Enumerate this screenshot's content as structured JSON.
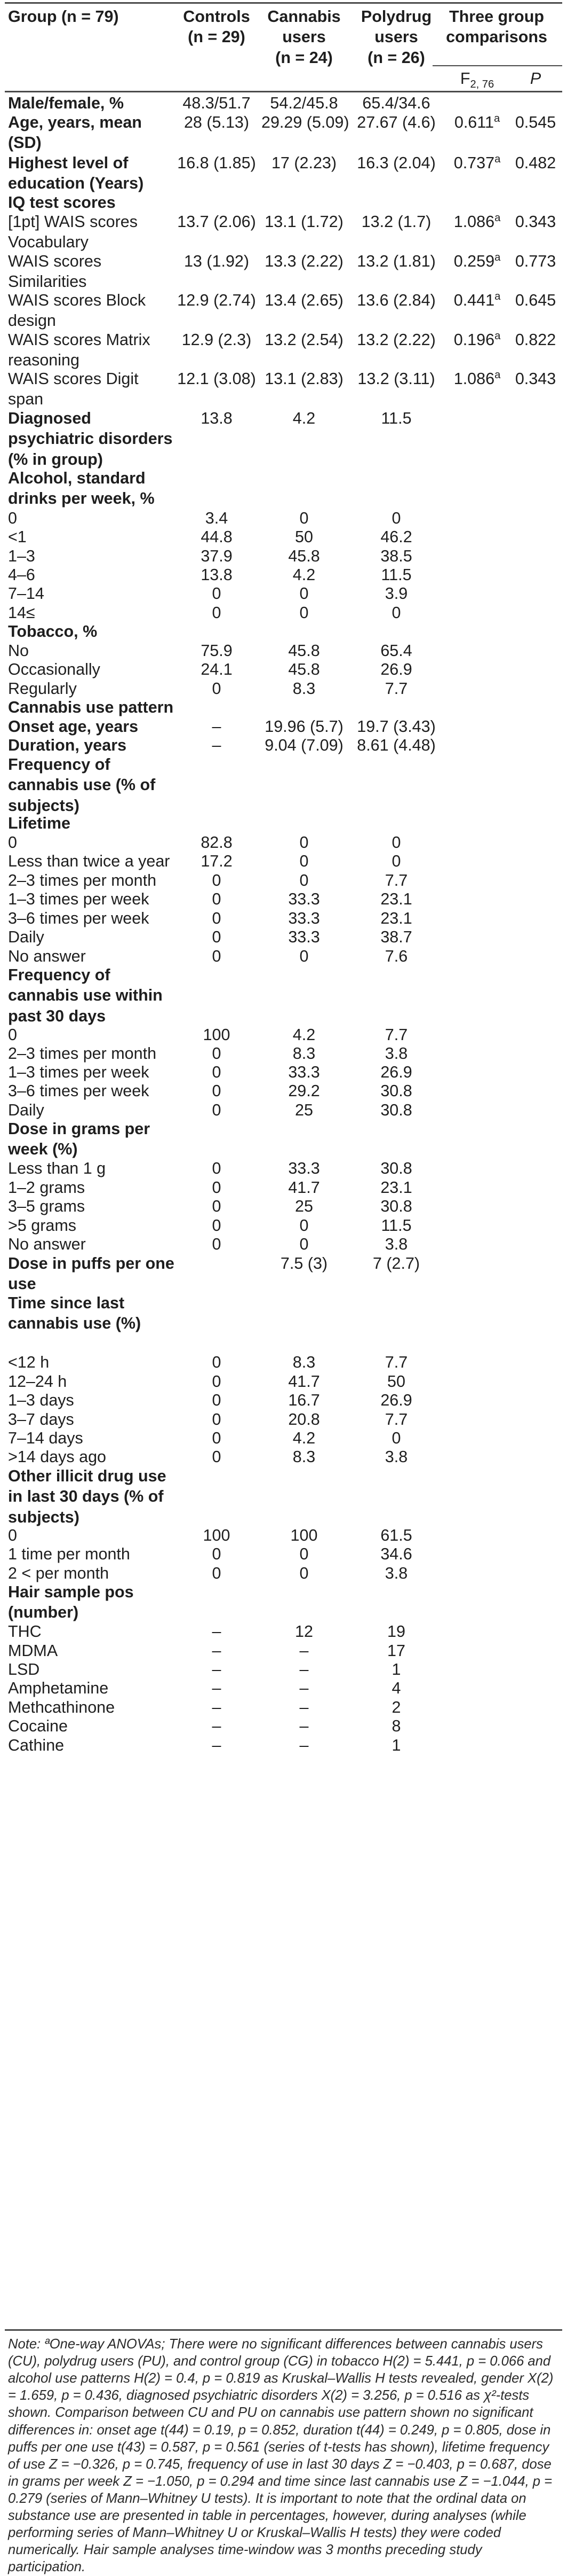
{
  "table": {
    "header": {
      "group": "Group (n = 79)",
      "controls": "Controls",
      "controls_n": "(n = 29)",
      "cannabis": "Cannabis",
      "cannabis_2": "users",
      "cannabis_n": "(n = 24)",
      "polydrug": "Polydrug",
      "polydrug_2": "users",
      "polydrug_n": "(n = 26)",
      "three": "Three group",
      "comparisons": "comparisons",
      "f_label": "F",
      "f_sub": "2, 76",
      "p_label": "P"
    },
    "rows": [
      {
        "label": "Male/female, %",
        "bold": true,
        "cu": "48.3/51.7",
        "cb": "54.2/45.8",
        "pu": "65.4/34.6",
        "f": "",
        "fsup": "",
        "p": ""
      },
      {
        "label": "Age, years, mean (SD)",
        "bold": true,
        "cu": "28 (5.13)",
        "cb": "29.29 (5.09)",
        "pu": "27.67 (4.6)",
        "f": "0.611",
        "fsup": "a",
        "p": "0.545"
      },
      {
        "label": "Highest level of education (Years)",
        "bold": true,
        "cu": "16.8 (1.85)",
        "cb": "17 (2.23)",
        "pu": "16.3 (2.04)",
        "f": "0.737",
        "fsup": "a",
        "p": "0.482"
      },
      {
        "label": "IQ test scores",
        "bold": true,
        "cu": "",
        "cb": "",
        "pu": "",
        "f": "",
        "fsup": "",
        "p": ""
      },
      {
        "label": "[1pt] WAIS scores Vocabulary",
        "bold": false,
        "cu": "13.7 (2.06)",
        "cb": "13.1 (1.72)",
        "pu": "13.2 (1.7)",
        "f": "1.086",
        "fsup": "a",
        "p": "0.343"
      },
      {
        "label": "WAIS scores Similarities",
        "bold": false,
        "cu": "13 (1.92)",
        "cb": "13.3 (2.22)",
        "pu": "13.2 (1.81)",
        "f": "0.259",
        "fsup": "a",
        "p": "0.773"
      },
      {
        "label": "WAIS scores Block design",
        "bold": false,
        "cu": "12.9 (2.74)",
        "cb": "13.4 (2.65)",
        "pu": "13.6 (2.84)",
        "f": "0.441",
        "fsup": "a",
        "p": "0.645"
      },
      {
        "label": "WAIS scores Matrix reasoning",
        "bold": false,
        "cu": "12.9 (2.3)",
        "cb": "13.2 (2.54)",
        "pu": "13.2 (2.22)",
        "f": "0.196",
        "fsup": "a",
        "p": "0.822"
      },
      {
        "label": "WAIS scores Digit span",
        "bold": false,
        "cu": "12.1 (3.08)",
        "cb": "13.1 (2.83)",
        "pu": "13.2 (3.11)",
        "f": "1.086",
        "fsup": "a",
        "p": "0.343"
      },
      {
        "label": "Diagnosed psychiatric disorders (% in group)",
        "bold": true,
        "cu": "13.8",
        "cb": "4.2",
        "pu": "11.5",
        "f": "",
        "fsup": "",
        "p": ""
      },
      {
        "label": "Alcohol, standard drinks per week, %",
        "bold": true,
        "cu": "",
        "cb": "",
        "pu": "",
        "f": "",
        "fsup": "",
        "p": ""
      },
      {
        "label": "0",
        "bold": false,
        "cu": "3.4",
        "cb": "0",
        "pu": "0",
        "f": "",
        "fsup": "",
        "p": ""
      },
      {
        "label": "<1",
        "bold": false,
        "cu": "44.8",
        "cb": "50",
        "pu": "46.2",
        "f": "",
        "fsup": "",
        "p": ""
      },
      {
        "label": "1–3",
        "bold": false,
        "cu": "37.9",
        "cb": "45.8",
        "pu": "38.5",
        "f": "",
        "fsup": "",
        "p": ""
      },
      {
        "label": "4–6",
        "bold": false,
        "cu": "13.8",
        "cb": "4.2",
        "pu": "11.5",
        "f": "",
        "fsup": "",
        "p": ""
      },
      {
        "label": "7–14",
        "bold": false,
        "cu": "0",
        "cb": "0",
        "pu": "3.9",
        "f": "",
        "fsup": "",
        "p": ""
      },
      {
        "label": "14≤",
        "bold": false,
        "cu": "0",
        "cb": "0",
        "pu": "0",
        "f": "",
        "fsup": "",
        "p": ""
      },
      {
        "label": "Tobacco, %",
        "bold": true,
        "cu": "",
        "cb": "",
        "pu": "",
        "f": "",
        "fsup": "",
        "p": ""
      },
      {
        "label": "No",
        "bold": false,
        "cu": "75.9",
        "cb": "45.8",
        "pu": "65.4",
        "f": "",
        "fsup": "",
        "p": ""
      },
      {
        "label": "Occasionally",
        "bold": false,
        "cu": "24.1",
        "cb": "45.8",
        "pu": "26.9",
        "f": "",
        "fsup": "",
        "p": ""
      },
      {
        "label": "Regularly",
        "bold": false,
        "cu": "0",
        "cb": "8.3",
        "pu": "7.7",
        "f": "",
        "fsup": "",
        "p": ""
      },
      {
        "label": "Cannabis use pattern",
        "bold": true,
        "cu": "",
        "cb": "",
        "pu": "",
        "f": "",
        "fsup": "",
        "p": ""
      },
      {
        "label": "Onset age, years",
        "bold": true,
        "cu": "–",
        "cb": "19.96 (5.7)",
        "pu": "19.7 (3.43)",
        "f": "",
        "fsup": "",
        "p": ""
      },
      {
        "label": "Duration, years",
        "bold": true,
        "cu": "–",
        "cb": "9.04 (7.09)",
        "pu": "8.61 (4.48)",
        "f": "",
        "fsup": "",
        "p": ""
      },
      {
        "label": "Frequency of cannabis use (% of subjects)",
        "bold": true,
        "cu": "",
        "cb": "",
        "pu": "",
        "f": "",
        "fsup": "",
        "p": ""
      },
      {
        "label": "Lifetime",
        "bold": true,
        "cu": "",
        "cb": "",
        "pu": "",
        "f": "",
        "fsup": "",
        "p": ""
      },
      {
        "label": "0",
        "bold": false,
        "cu": "82.8",
        "cb": "0",
        "pu": "0",
        "f": "",
        "fsup": "",
        "p": ""
      },
      {
        "label": "Less than twice a year",
        "bold": false,
        "cu": "17.2",
        "cb": "0",
        "pu": "0",
        "f": "",
        "fsup": "",
        "p": ""
      },
      {
        "label": "2–3 times per month",
        "bold": false,
        "cu": "0",
        "cb": "0",
        "pu": "7.7",
        "f": "",
        "fsup": "",
        "p": ""
      },
      {
        "label": "1–3 times per week",
        "bold": false,
        "cu": "0",
        "cb": "33.3",
        "pu": "23.1",
        "f": "",
        "fsup": "",
        "p": ""
      },
      {
        "label": "3–6 times per week",
        "bold": false,
        "cu": "0",
        "cb": "33.3",
        "pu": "23.1",
        "f": "",
        "fsup": "",
        "p": ""
      },
      {
        "label": "Daily",
        "bold": false,
        "cu": "0",
        "cb": "33.3",
        "pu": "38.7",
        "f": "",
        "fsup": "",
        "p": ""
      },
      {
        "label": "No answer",
        "bold": false,
        "cu": "0",
        "cb": "0",
        "pu": "7.6",
        "f": "",
        "fsup": "",
        "p": ""
      },
      {
        "label": "Frequency of cannabis use within past 30 days",
        "bold": true,
        "cu": "",
        "cb": "",
        "pu": "",
        "f": "",
        "fsup": "",
        "p": ""
      },
      {
        "label": "0",
        "bold": false,
        "cu": "100",
        "cb": "4.2",
        "pu": "7.7",
        "f": "",
        "fsup": "",
        "p": ""
      },
      {
        "label": "2–3 times per month",
        "bold": false,
        "cu": "0",
        "cb": "8.3",
        "pu": "3.8",
        "f": "",
        "fsup": "",
        "p": ""
      },
      {
        "label": "1–3 times per week",
        "bold": false,
        "cu": "0",
        "cb": "33.3",
        "pu": "26.9",
        "f": "",
        "fsup": "",
        "p": ""
      },
      {
        "label": "3–6 times per week",
        "bold": false,
        "cu": "0",
        "cb": "29.2",
        "pu": "30.8",
        "f": "",
        "fsup": "",
        "p": ""
      },
      {
        "label": "Daily",
        "bold": false,
        "cu": "0",
        "cb": "25",
        "pu": "30.8",
        "f": "",
        "fsup": "",
        "p": ""
      },
      {
        "label": "Dose in grams per week (%)",
        "bold": true,
        "cu": "",
        "cb": "",
        "pu": "",
        "f": "",
        "fsup": "",
        "p": ""
      },
      {
        "label": "Less than 1 g",
        "bold": false,
        "cu": "0",
        "cb": "33.3",
        "pu": "30.8",
        "f": "",
        "fsup": "",
        "p": ""
      },
      {
        "label": "1–2 grams",
        "bold": false,
        "cu": "0",
        "cb": "41.7",
        "pu": "23.1",
        "f": "",
        "fsup": "",
        "p": ""
      },
      {
        "label": "3–5 grams",
        "bold": false,
        "cu": "0",
        "cb": "25",
        "pu": "30.8",
        "f": "",
        "fsup": "",
        "p": ""
      },
      {
        "label": ">5 grams",
        "bold": false,
        "cu": "0",
        "cb": "0",
        "pu": "11.5",
        "f": "",
        "fsup": "",
        "p": ""
      },
      {
        "label": "No answer",
        "bold": false,
        "cu": "0",
        "cb": "0",
        "pu": "3.8",
        "f": "",
        "fsup": "",
        "p": ""
      },
      {
        "label": "Dose in puffs per one use",
        "bold": true,
        "cu": "",
        "cb": "7.5 (3)",
        "pu": "7 (2.7)",
        "f": "",
        "fsup": "",
        "p": ""
      },
      {
        "label": "Time since last cannabis use (%)",
        "bold": true,
        "cu": "",
        "cb": "",
        "pu": "",
        "f": "",
        "fsup": "",
        "p": ""
      },
      {
        "label": "<12 h",
        "bold": false,
        "cu": "0",
        "cb": "8.3",
        "pu": "7.7",
        "f": "",
        "fsup": "",
        "p": ""
      },
      {
        "label": "12–24 h",
        "bold": false,
        "cu": "0",
        "cb": "41.7",
        "pu": "50",
        "f": "",
        "fsup": "",
        "p": ""
      },
      {
        "label": "1–3 days",
        "bold": false,
        "cu": "0",
        "cb": "16.7",
        "pu": "26.9",
        "f": "",
        "fsup": "",
        "p": ""
      },
      {
        "label": "3–7 days",
        "bold": false,
        "cu": "0",
        "cb": "20.8",
        "pu": "7.7",
        "f": "",
        "fsup": "",
        "p": ""
      },
      {
        "label": "7–14 days",
        "bold": false,
        "cu": "0",
        "cb": "4.2",
        "pu": "0",
        "f": "",
        "fsup": "",
        "p": ""
      },
      {
        "label": ">14 days ago",
        "bold": false,
        "cu": "0",
        "cb": "8.3",
        "pu": "3.8",
        "f": "",
        "fsup": "",
        "p": ""
      },
      {
        "label": "Other illicit drug use in last 30 days (% of subjects)",
        "bold": true,
        "cu": "",
        "cb": "",
        "pu": "",
        "f": "",
        "fsup": "",
        "p": ""
      },
      {
        "label": "0",
        "bold": false,
        "cu": "100",
        "cb": "100",
        "pu": "61.5",
        "f": "",
        "fsup": "",
        "p": ""
      },
      {
        "label": "1 time per month",
        "bold": false,
        "cu": "0",
        "cb": "0",
        "pu": "34.6",
        "f": "",
        "fsup": "",
        "p": ""
      },
      {
        "label": "2 < per month",
        "bold": false,
        "cu": "0",
        "cb": "0",
        "pu": "3.8",
        "f": "",
        "fsup": "",
        "p": ""
      },
      {
        "label": "Hair sample pos (number)",
        "bold": true,
        "cu": "",
        "cb": "",
        "pu": "",
        "f": "",
        "fsup": "",
        "p": ""
      },
      {
        "label": "THC",
        "bold": false,
        "cu": "–",
        "cb": "12",
        "pu": "19",
        "f": "",
        "fsup": "",
        "p": ""
      },
      {
        "label": "MDMA",
        "bold": false,
        "cu": "–",
        "cb": "–",
        "pu": "17",
        "f": "",
        "fsup": "",
        "p": ""
      },
      {
        "label": "LSD",
        "bold": false,
        "cu": "–",
        "cb": "–",
        "pu": "1",
        "f": "",
        "fsup": "",
        "p": ""
      },
      {
        "label": "Amphetamine",
        "bold": false,
        "cu": "–",
        "cb": "–",
        "pu": "4",
        "f": "",
        "fsup": "",
        "p": ""
      },
      {
        "label": "Methcathinone",
        "bold": false,
        "cu": "–",
        "cb": "–",
        "pu": "2",
        "f": "",
        "fsup": "",
        "p": ""
      },
      {
        "label": "Cocaine",
        "bold": false,
        "cu": "–",
        "cb": "–",
        "pu": "8",
        "f": "",
        "fsup": "",
        "p": ""
      },
      {
        "label": "Cathine",
        "bold": false,
        "cu": "–",
        "cb": "–",
        "pu": "1",
        "f": "",
        "fsup": "",
        "p": ""
      }
    ]
  },
  "note": {
    "label": "Note: ",
    "text": "ªOne-way ANOVAs; There were no significant differences between cannabis users (CU), polydrug users (PU), and control group (CG) in tobacco H(2) = 5.441, p = 0.066 and alcohol use patterns H(2) = 0.4, p = 0.819 as Kruskal–Wallis H tests revealed, gender X(2) = 1.659, p = 0.436, diagnosed psychiatric disorders X(2) = 3.256, p = 0.516 as χ²-tests shown. Comparison between CU and PU on cannabis use pattern shown no significant differences in: onset age t(44) = 0.19, p = 0.852, duration t(44) = 0.249, p = 0.805, dose in puffs per one use t(43) = 0.587, p = 0.561 (series of t-tests has shown), lifetime frequency of use Z = −0.326, p = 0.745, frequency of use in last 30 days Z = −0.403, p = 0.687, dose in grams per week Z = −1.050, p = 0.294 and time since last cannabis use Z = −1.044, p = 0.279 (series of Mann–Whitney U tests). It is important to note that the ordinal data on substance use are presented in table in percentages, however, during analyses (while performing series of Mann–Whitney U or Kruskal–Wallis H tests) they were coded numerically. Hair sample analyses time-window was 3 months preceding study participation."
  }
}
